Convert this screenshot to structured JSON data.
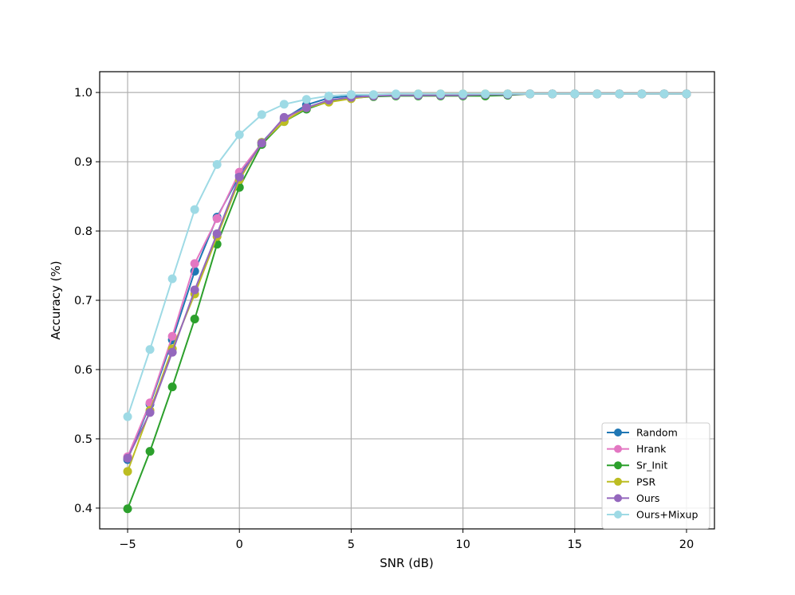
{
  "chart_data": {
    "type": "line",
    "title": "",
    "xlabel": "SNR (dB)",
    "ylabel": "Accuracy (%)",
    "xlim": [
      -6.25,
      21.25
    ],
    "ylim": [
      0.37,
      1.03
    ],
    "xticks": [
      -5,
      0,
      5,
      10,
      15,
      20
    ],
    "xtick_labels": [
      "−5",
      "0",
      "5",
      "10",
      "15",
      "20"
    ],
    "yticks": [
      0.4,
      0.5,
      0.6,
      0.7,
      0.8,
      0.9,
      1.0
    ],
    "ytick_labels": [
      "0.4",
      "0.5",
      "0.6",
      "0.7",
      "0.8",
      "0.9",
      "1.0"
    ],
    "grid": true,
    "legend_position": "lower-right",
    "x": [
      -5,
      -4,
      -3,
      -2,
      -1,
      0,
      1,
      2,
      3,
      4,
      5,
      6,
      7,
      8,
      9,
      10,
      11,
      12,
      13,
      14,
      15,
      16,
      17,
      18,
      19,
      20
    ],
    "series": [
      {
        "name": "Random",
        "color": "#1f77b4",
        "values": [
          0.47,
          0.55,
          0.643,
          0.742,
          0.82,
          0.88,
          0.928,
          0.962,
          0.982,
          0.992,
          0.995,
          0.996,
          0.996,
          0.997,
          0.997,
          0.997,
          0.997,
          0.998,
          0.998,
          0.998,
          0.998,
          0.998,
          0.998,
          0.998,
          0.998,
          0.998
        ]
      },
      {
        "name": "Hrank",
        "color": "#e377c2",
        "values": [
          0.474,
          0.552,
          0.648,
          0.753,
          0.818,
          0.885,
          0.927,
          0.96,
          0.978,
          0.988,
          0.993,
          0.995,
          0.996,
          0.997,
          0.997,
          0.997,
          0.997,
          0.998,
          0.998,
          0.998,
          0.998,
          0.998,
          0.998,
          0.998,
          0.998,
          0.998
        ]
      },
      {
        "name": "Sr_Init",
        "color": "#2ca02c",
        "values": [
          0.399,
          0.482,
          0.575,
          0.673,
          0.781,
          0.863,
          0.925,
          0.958,
          0.976,
          0.987,
          0.992,
          0.994,
          0.995,
          0.995,
          0.995,
          0.995,
          0.995,
          0.996,
          0.998,
          0.998,
          0.998,
          0.998,
          0.998,
          0.998,
          0.998,
          0.998
        ]
      },
      {
        "name": "PSR",
        "color": "#bcbd22",
        "values": [
          0.453,
          0.541,
          0.63,
          0.709,
          0.792,
          0.874,
          0.928,
          0.958,
          0.978,
          0.986,
          0.991,
          0.995,
          0.997,
          0.998,
          0.998,
          0.998,
          0.998,
          0.998,
          0.998,
          0.998,
          0.998,
          0.998,
          0.998,
          0.998,
          0.998,
          0.998
        ]
      },
      {
        "name": "Ours",
        "color": "#9467bd",
        "values": [
          0.472,
          0.538,
          0.625,
          0.715,
          0.796,
          0.878,
          0.927,
          0.964,
          0.978,
          0.989,
          0.993,
          0.995,
          0.996,
          0.996,
          0.996,
          0.996,
          0.997,
          0.997,
          0.998,
          0.998,
          0.998,
          0.998,
          0.998,
          0.998,
          0.998,
          0.998
        ]
      },
      {
        "name": "Ours+Mixup",
        "color": "#9edae5",
        "values": [
          0.532,
          0.629,
          0.731,
          0.831,
          0.896,
          0.939,
          0.968,
          0.983,
          0.99,
          0.995,
          0.997,
          0.997,
          0.998,
          0.998,
          0.998,
          0.998,
          0.998,
          0.998,
          0.998,
          0.998,
          0.998,
          0.998,
          0.998,
          0.998,
          0.998,
          0.998
        ]
      }
    ]
  }
}
